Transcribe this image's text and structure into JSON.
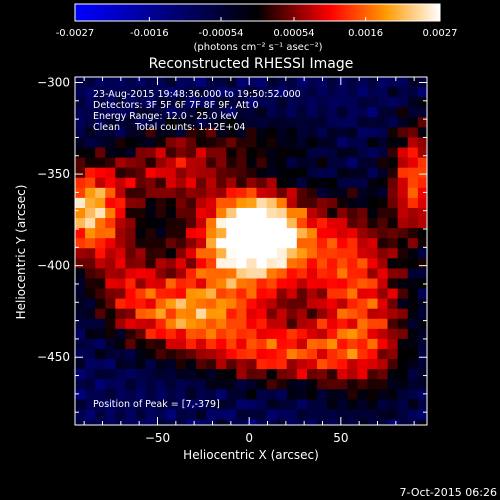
{
  "chart_data": {
    "type": "heatmap",
    "title": "Reconstructed RHESSI Image",
    "xlabel": "Heliocentric X (arcsec)",
    "ylabel": "Heliocentric Y (arcsec)",
    "xlim": [
      -95,
      97
    ],
    "ylim": [
      -487,
      -297
    ],
    "x_ticks": [
      -50,
      0,
      50
    ],
    "y_ticks": [
      -300,
      -350,
      -400,
      -450
    ],
    "colorbar": {
      "min": -0.0027,
      "max": 0.0027,
      "tick_labels": [
        "-0.0027",
        "-0.0016",
        "-0.00054",
        "0.00054",
        "0.0016",
        "0.0027"
      ],
      "unit_label": "(photons cm⁻² s⁻¹ asec⁻²)",
      "colors": [
        "#0000ff",
        "#000000",
        "#ff0000",
        "#ff9900",
        "#ffffff"
      ]
    },
    "info_lines": [
      "23-Aug-2015 19:48:36.000 to 19:50:52.000",
      "Detectors: 3F 5F 6F 7F 8F 9F, Att 0",
      "Energy Range: 12.0 - 25.0 keV",
      "Clean     Total counts: 1.12E+04"
    ],
    "peak_label": "Position of Peak = [7,-379]",
    "peak": {
      "x": 7,
      "y": -379
    },
    "sources": [
      {
        "x": 2,
        "y": -378,
        "sx": 16,
        "sy": 14,
        "a": 1.0
      },
      {
        "x": -8,
        "y": -395,
        "sx": 28,
        "sy": 24,
        "a": 0.55
      },
      {
        "x": -90,
        "y": -368,
        "sx": 14,
        "sy": 18,
        "a": 0.8
      },
      {
        "x": -45,
        "y": -345,
        "sx": 22,
        "sy": 14,
        "a": 0.4
      },
      {
        "x": -40,
        "y": -425,
        "sx": 24,
        "sy": 14,
        "a": 0.55
      },
      {
        "x": 15,
        "y": -445,
        "sx": 30,
        "sy": 12,
        "a": 0.5
      },
      {
        "x": 60,
        "y": -425,
        "sx": 18,
        "sy": 30,
        "a": 0.5
      },
      {
        "x": 88,
        "y": -350,
        "sx": 10,
        "sy": 22,
        "a": 0.6
      },
      {
        "x": 45,
        "y": -385,
        "sx": 18,
        "sy": 20,
        "a": 0.3
      },
      {
        "x": -70,
        "y": -405,
        "sx": 14,
        "sy": 16,
        "a": 0.3
      },
      {
        "x": 0,
        "y": -330,
        "sx": 30,
        "sy": 10,
        "a": 0.2
      }
    ],
    "pixel_size": 5.5,
    "grid": false
  },
  "footer": {
    "timestamp": "7-Oct-2015 06:26"
  }
}
